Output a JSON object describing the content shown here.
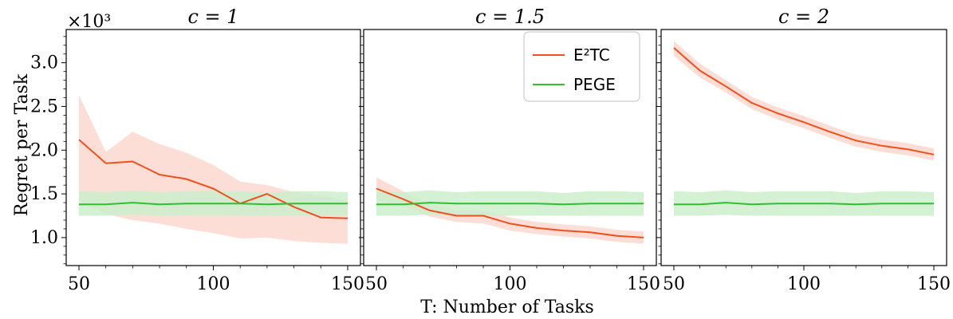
{
  "colors": {
    "e2tc": "#f0501e",
    "e2tc_band": "#fbd3c8",
    "pege": "#2fbf2f",
    "pege_band": "#cdeecd"
  },
  "figure": {
    "xlabel": "T: Number of Tasks",
    "ylabel": "Regret per Task",
    "y_multiplier": "×10³"
  },
  "legend": {
    "placement": "top-right of second panel",
    "entries": [
      "E²TC",
      "PEGE"
    ]
  },
  "chart_data": [
    {
      "type": "line",
      "title": "c = 1",
      "xlabel": "",
      "ylabel": "Regret per Task",
      "xlim": [
        50,
        150
      ],
      "ylim": [
        0.68,
        3.38
      ],
      "xticks": [
        50,
        100,
        150
      ],
      "yticks": [
        1.0,
        1.5,
        2.0,
        2.5,
        3.0
      ],
      "ytick_labels": [
        "1.0",
        "1.5",
        "2.0",
        "2.5",
        "3.0"
      ],
      "x": [
        50,
        60,
        70,
        80,
        90,
        100,
        110,
        120,
        130,
        140,
        150
      ],
      "series": [
        {
          "name": "E²TC",
          "values": [
            2.12,
            1.85,
            1.87,
            1.72,
            1.67,
            1.56,
            1.39,
            1.5,
            1.35,
            1.23,
            1.22
          ],
          "lower": [
            1.42,
            1.27,
            1.2,
            1.16,
            1.1,
            1.05,
            0.99,
            1.0,
            0.96,
            0.94,
            0.93
          ],
          "upper": [
            2.63,
            1.98,
            2.21,
            2.07,
            1.97,
            1.83,
            1.64,
            1.6,
            1.52,
            1.48,
            1.42
          ]
        },
        {
          "name": "PEGE",
          "values": [
            1.38,
            1.38,
            1.4,
            1.38,
            1.39,
            1.39,
            1.39,
            1.38,
            1.39,
            1.39,
            1.39
          ],
          "lower": [
            1.25,
            1.25,
            1.26,
            1.25,
            1.25,
            1.25,
            1.25,
            1.25,
            1.25,
            1.25,
            1.25
          ],
          "upper": [
            1.53,
            1.52,
            1.54,
            1.52,
            1.53,
            1.53,
            1.53,
            1.51,
            1.53,
            1.53,
            1.52
          ]
        }
      ]
    },
    {
      "type": "line",
      "title": "c = 1.5",
      "xlabel": "",
      "ylabel": "",
      "xlim": [
        50,
        150
      ],
      "ylim": [
        0.68,
        3.38
      ],
      "xticks": [
        50,
        100,
        150
      ],
      "yticks": [
        1.0,
        1.5,
        2.0,
        2.5,
        3.0
      ],
      "x": [
        50,
        60,
        70,
        80,
        90,
        100,
        110,
        120,
        130,
        140,
        150
      ],
      "series": [
        {
          "name": "E²TC",
          "values": [
            1.56,
            1.44,
            1.31,
            1.25,
            1.25,
            1.16,
            1.11,
            1.08,
            1.06,
            1.02,
            1.0
          ],
          "lower": [
            1.43,
            1.36,
            1.24,
            1.18,
            1.16,
            1.08,
            1.04,
            1.01,
            0.99,
            0.95,
            0.93
          ],
          "upper": [
            1.69,
            1.53,
            1.38,
            1.31,
            1.31,
            1.23,
            1.18,
            1.15,
            1.13,
            1.09,
            1.07
          ]
        },
        {
          "name": "PEGE",
          "values": [
            1.38,
            1.38,
            1.4,
            1.39,
            1.39,
            1.39,
            1.39,
            1.38,
            1.39,
            1.39,
            1.39
          ],
          "lower": [
            1.25,
            1.25,
            1.26,
            1.25,
            1.25,
            1.25,
            1.25,
            1.25,
            1.25,
            1.25,
            1.25
          ],
          "upper": [
            1.53,
            1.52,
            1.54,
            1.52,
            1.53,
            1.53,
            1.53,
            1.51,
            1.53,
            1.53,
            1.52
          ]
        }
      ]
    },
    {
      "type": "line",
      "title": "c = 2",
      "xlabel": "",
      "ylabel": "",
      "xlim": [
        50,
        150
      ],
      "ylim": [
        0.68,
        3.38
      ],
      "xticks": [
        50,
        100,
        150
      ],
      "yticks": [
        1.0,
        1.5,
        2.0,
        2.5,
        3.0
      ],
      "x": [
        50,
        60,
        70,
        80,
        90,
        100,
        110,
        120,
        130,
        140,
        150
      ],
      "series": [
        {
          "name": "E²TC",
          "values": [
            3.17,
            2.91,
            2.73,
            2.54,
            2.42,
            2.32,
            2.21,
            2.11,
            2.05,
            2.01,
            1.95
          ],
          "lower": [
            3.08,
            2.83,
            2.66,
            2.47,
            2.35,
            2.25,
            2.14,
            2.04,
            1.98,
            1.94,
            1.88
          ],
          "upper": [
            3.25,
            2.99,
            2.8,
            2.61,
            2.49,
            2.39,
            2.28,
            2.18,
            2.12,
            2.08,
            2.02
          ]
        },
        {
          "name": "PEGE",
          "values": [
            1.38,
            1.38,
            1.4,
            1.38,
            1.39,
            1.39,
            1.39,
            1.38,
            1.39,
            1.39,
            1.39
          ],
          "lower": [
            1.25,
            1.25,
            1.26,
            1.25,
            1.25,
            1.25,
            1.25,
            1.25,
            1.25,
            1.25,
            1.25
          ],
          "upper": [
            1.53,
            1.52,
            1.54,
            1.52,
            1.53,
            1.53,
            1.53,
            1.51,
            1.53,
            1.53,
            1.52
          ]
        }
      ]
    }
  ]
}
